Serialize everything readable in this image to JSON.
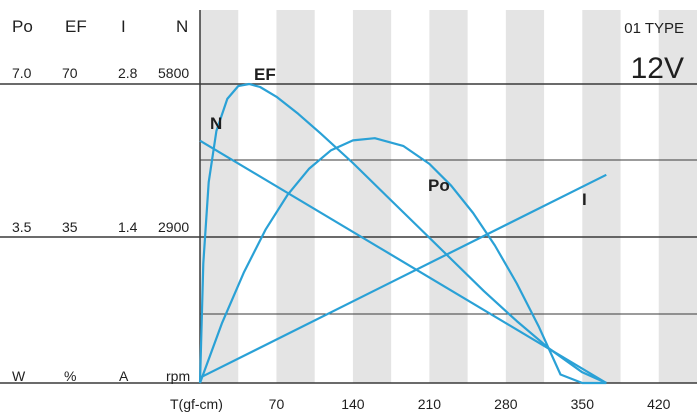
{
  "chart_data": {
    "type": "line",
    "type_label": "01 TYPE",
    "voltage": "12V",
    "xlabel": "T(gf-cm)",
    "x_ticks": [
      70,
      140,
      210,
      280,
      350,
      420
    ],
    "xlim": [
      0,
      455
    ],
    "axes": [
      {
        "name": "Po",
        "unit": "W",
        "ticks": [
          "7.0",
          "3.5"
        ],
        "max": 7.0
      },
      {
        "name": "EF",
        "unit": "%",
        "ticks": [
          "70",
          "35"
        ],
        "max": 70
      },
      {
        "name": "I",
        "unit": "A",
        "ticks": [
          "2.8",
          "1.4"
        ],
        "max": 2.8
      },
      {
        "name": "N",
        "unit": "rpm",
        "ticks": [
          "5800",
          "2900"
        ],
        "max": 5800
      }
    ],
    "grid": true,
    "series": [
      {
        "name": "N",
        "axis": "N",
        "color": "#2aa1d6",
        "x": [
          0,
          372
        ],
        "y": [
          4700,
          0
        ]
      },
      {
        "name": "I",
        "axis": "I",
        "color": "#2aa1d6",
        "x": [
          0,
          372
        ],
        "y": [
          0.05,
          1.95
        ]
      },
      {
        "name": "Po",
        "axis": "Po",
        "color": "#2aa1d6",
        "x": [
          0,
          20,
          40,
          60,
          80,
          100,
          120,
          140,
          160,
          186,
          210,
          230,
          250,
          270,
          290,
          310,
          330,
          350,
          372
        ],
        "y": [
          0,
          1.39,
          2.58,
          3.59,
          4.4,
          5.02,
          5.45,
          5.68,
          5.73,
          5.55,
          5.13,
          4.62,
          3.98,
          3.22,
          2.33,
          1.33,
          0.2,
          -1.05,
          0
        ]
      },
      {
        "name": "EF",
        "axis": "EF",
        "color": "#2aa1d6",
        "x": [
          0,
          3,
          8,
          15,
          25,
          35,
          45,
          55,
          70,
          90,
          110,
          140,
          170,
          200,
          230,
          260,
          290,
          320,
          350,
          372
        ],
        "y": [
          0,
          28,
          47,
          59,
          66.5,
          69.5,
          70,
          69.3,
          67,
          63,
          58.5,
          51.5,
          44,
          36.5,
          29,
          21.5,
          14.5,
          8,
          2.5,
          0
        ]
      }
    ]
  }
}
